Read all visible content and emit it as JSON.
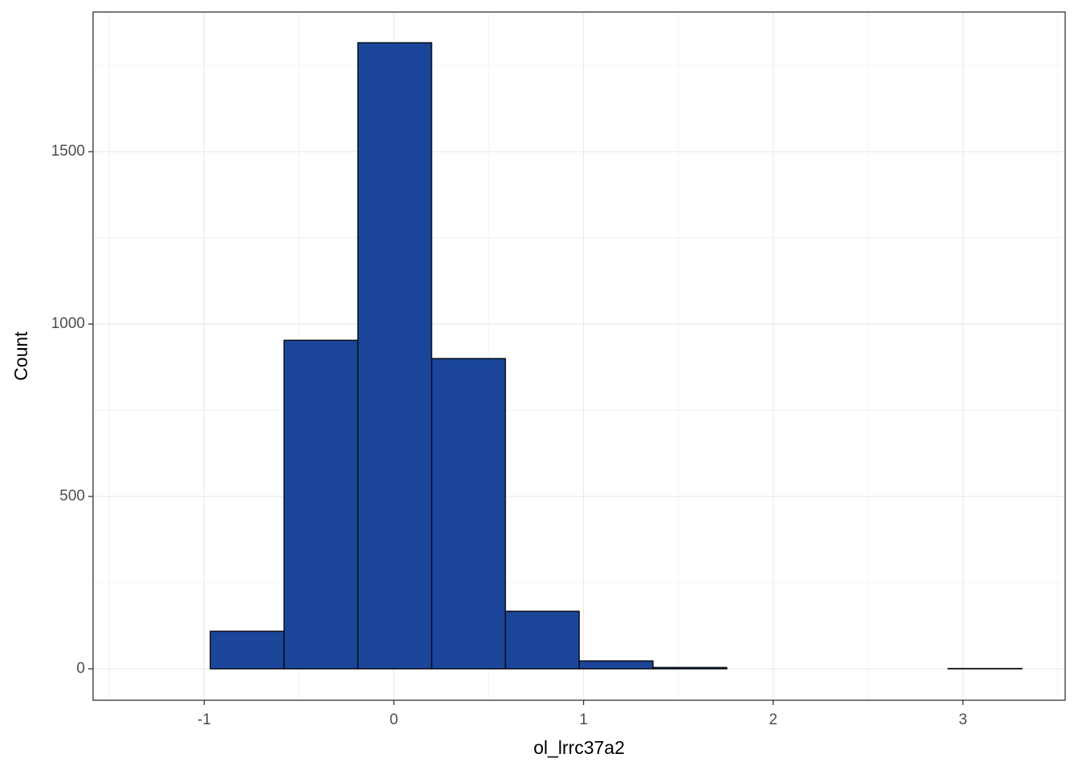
{
  "chart_data": {
    "type": "histogram",
    "x_label": "ol_lrrc37a2",
    "y_label": "Count",
    "bins": [
      -1.357,
      -0.968,
      -0.579,
      -0.19,
      0.199,
      0.588,
      0.977,
      1.366,
      1.755,
      2.144,
      2.533,
      2.922,
      3.311
    ],
    "values": [
      0,
      109,
      953,
      1816,
      900,
      167,
      23,
      4,
      0,
      0,
      0,
      1
    ],
    "color": "#1a4599",
    "edge_color": "#000000",
    "xlim": [
      -1.586,
      3.539
    ],
    "ylim": [
      -91,
      1905
    ],
    "xticks": [
      -1,
      0,
      1,
      2,
      3
    ],
    "yticks": [
      0,
      500,
      1000,
      1500
    ],
    "grid": true,
    "minor_grid": true
  }
}
